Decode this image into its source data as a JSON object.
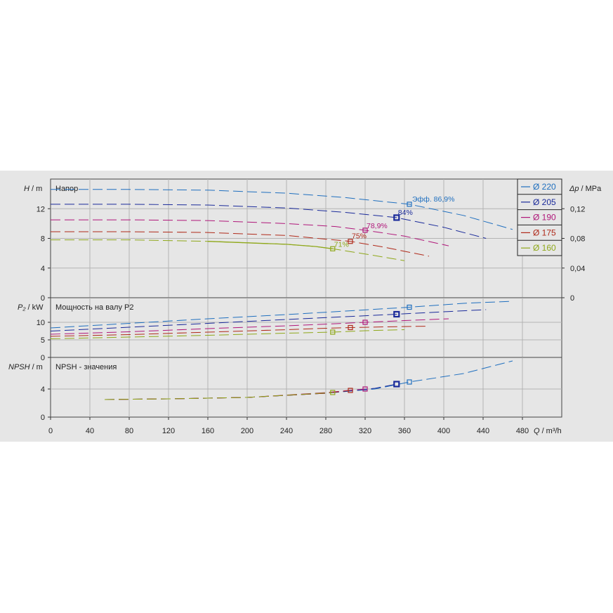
{
  "chart_data": {
    "type": "line",
    "panels": {
      "head": {
        "title": "Напор",
        "ylabel_symbol": "H",
        "ylabel_unit": "/ m",
        "ylim": [
          0,
          16
        ],
        "yticks": [
          "0",
          "4",
          "8",
          "12"
        ],
        "ylabel_right_symbol": "Δp",
        "ylabel_right_unit": "/ MPa",
        "yticks_right": [
          "0",
          "0,04",
          "0,08",
          "0,12"
        ]
      },
      "power": {
        "title": "Мощность на валу P2",
        "ylabel_symbol": "P₂",
        "ylabel_unit": "/ kW",
        "ylim": [
          0,
          17
        ],
        "yticks": [
          "0",
          "5",
          "10"
        ]
      },
      "npsh": {
        "title": "NPSH - значения",
        "ylabel_symbol": "NPSH",
        "ylabel_unit": "/ m",
        "ylim": [
          0,
          8.5
        ],
        "yticks": [
          "0",
          "4"
        ]
      }
    },
    "xlabel_symbol": "Q",
    "xlabel_unit": "/ m³/h",
    "xlim": [
      0,
      520
    ],
    "xticks": [
      "0",
      "40",
      "80",
      "120",
      "160",
      "200",
      "240",
      "280",
      "320",
      "360",
      "400",
      "440",
      "480"
    ],
    "grid": true,
    "legend_position": "top-right",
    "series": [
      {
        "name": "Ø 220",
        "color": "#1f6fbf",
        "head": [
          [
            0,
            14.6
          ],
          [
            80,
            14.6
          ],
          [
            160,
            14.5
          ],
          [
            240,
            14.1
          ],
          [
            300,
            13.5
          ],
          [
            365,
            12.6
          ],
          [
            420,
            11.1
          ],
          [
            470,
            9.2
          ]
        ],
        "power": [
          [
            0,
            8.4
          ],
          [
            80,
            9.7
          ],
          [
            160,
            11
          ],
          [
            240,
            12.2
          ],
          [
            300,
            13.2
          ],
          [
            365,
            14.3
          ],
          [
            420,
            15.4
          ],
          [
            470,
            16
          ]
        ],
        "npsh": [
          [
            55,
            2.5
          ],
          [
            120,
            2.6
          ],
          [
            200,
            2.8
          ],
          [
            280,
            3.4
          ],
          [
            330,
            4
          ],
          [
            365,
            5
          ],
          [
            420,
            6.2
          ],
          [
            470,
            8
          ]
        ],
        "duty_point": [
          365,
          12.6
        ],
        "duty_power": 14.3,
        "duty_npsh": 5,
        "label": "Эфф.  86,9%"
      },
      {
        "name": "Ø 205",
        "color": "#1a2a9a",
        "head": [
          [
            0,
            12.6
          ],
          [
            80,
            12.6
          ],
          [
            160,
            12.5
          ],
          [
            240,
            12.1
          ],
          [
            300,
            11.5
          ],
          [
            352,
            10.8
          ],
          [
            400,
            9.5
          ],
          [
            443,
            8
          ]
        ],
        "power": [
          [
            0,
            7.5
          ],
          [
            80,
            8.6
          ],
          [
            160,
            9.7
          ],
          [
            240,
            10.8
          ],
          [
            300,
            11.6
          ],
          [
            352,
            12.3
          ],
          [
            400,
            13
          ],
          [
            443,
            13.6
          ]
        ],
        "npsh": [
          [
            55,
            2.5
          ],
          [
            120,
            2.6
          ],
          [
            200,
            2.8
          ],
          [
            280,
            3.4
          ],
          [
            330,
            4.1
          ],
          [
            352,
            4.7
          ]
        ],
        "duty_point": [
          352,
          10.8
        ],
        "duty_power": 12.3,
        "duty_npsh": 4.7,
        "label": "84%"
      },
      {
        "name": "Ø 190",
        "color": "#b0177a",
        "head": [
          [
            0,
            10.5
          ],
          [
            80,
            10.5
          ],
          [
            160,
            10.4
          ],
          [
            240,
            10
          ],
          [
            290,
            9.6
          ],
          [
            320,
            9.1
          ],
          [
            360,
            8.3
          ],
          [
            405,
            7
          ]
        ],
        "power": [
          [
            0,
            6.6
          ],
          [
            80,
            7.3
          ],
          [
            160,
            8.2
          ],
          [
            240,
            9
          ],
          [
            290,
            9.6
          ],
          [
            320,
            10
          ],
          [
            360,
            10.5
          ],
          [
            405,
            11
          ]
        ],
        "npsh": [
          [
            55,
            2.5
          ],
          [
            120,
            2.6
          ],
          [
            200,
            2.8
          ],
          [
            280,
            3.5
          ],
          [
            320,
            4
          ]
        ],
        "duty_point": [
          320,
          9.1
        ],
        "duty_power": 10,
        "duty_npsh": 4,
        "label": "78,9%"
      },
      {
        "name": "Ø 175",
        "color": "#b02a1a",
        "head": [
          [
            0,
            8.9
          ],
          [
            80,
            8.9
          ],
          [
            160,
            8.8
          ],
          [
            240,
            8.4
          ],
          [
            280,
            7.9
          ],
          [
            305,
            7.6
          ],
          [
            340,
            6.8
          ],
          [
            385,
            5.6
          ]
        ],
        "power": [
          [
            0,
            6
          ],
          [
            80,
            6.5
          ],
          [
            160,
            7.2
          ],
          [
            240,
            7.9
          ],
          [
            280,
            8.3
          ],
          [
            305,
            8.5
          ],
          [
            340,
            8.7
          ],
          [
            385,
            8.9
          ]
        ],
        "npsh": [
          [
            55,
            2.5
          ],
          [
            120,
            2.6
          ],
          [
            200,
            2.8
          ],
          [
            280,
            3.4
          ],
          [
            305,
            3.8
          ]
        ],
        "duty_point": [
          305,
          7.6
        ],
        "duty_power": 8.5,
        "duty_npsh": 3.8,
        "label": "75%"
      },
      {
        "name": "Ø 160",
        "color": "#8fa81a",
        "head": [
          [
            0,
            7.8
          ],
          [
            80,
            7.8
          ],
          [
            160,
            7.6
          ],
          [
            240,
            7.2
          ],
          [
            270,
            6.9
          ],
          [
            287,
            6.6
          ],
          [
            320,
            5.9
          ],
          [
            360,
            5
          ]
        ],
        "power": [
          [
            0,
            5.3
          ],
          [
            80,
            5.8
          ],
          [
            160,
            6.3
          ],
          [
            240,
            6.9
          ],
          [
            287,
            7.2
          ],
          [
            320,
            7.6
          ],
          [
            360,
            7.9
          ]
        ],
        "npsh": [
          [
            55,
            2.5
          ],
          [
            120,
            2.6
          ],
          [
            200,
            2.8
          ],
          [
            287,
            3.5
          ]
        ],
        "duty_point": [
          287,
          6.6
        ],
        "duty_power": 7.2,
        "duty_npsh": 3.5,
        "label": "71%"
      }
    ]
  }
}
